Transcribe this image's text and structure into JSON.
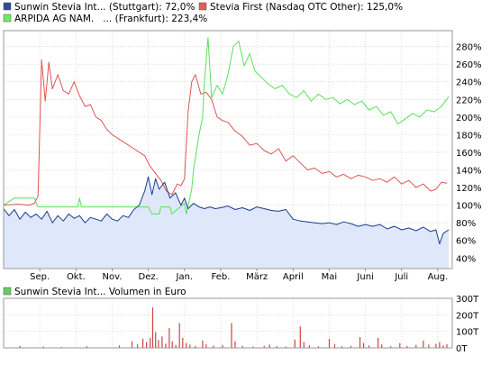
{
  "legend": [
    {
      "label": "Sunwin Stevia Int... (Stuttgart): 72,0%",
      "color": "#2e4a9e"
    },
    {
      "label": "Stevia First (Nasdaq OTC Other): 125,0%",
      "color": "#e06060"
    },
    {
      "label": "ARPIDA AG NAM.   ... (Frankfurt): 223,4%",
      "color": "#66ee66"
    }
  ],
  "volume_legend": {
    "label": "Sunwin Stevia Int... Volumen in Euro",
    "color": "#66cc66"
  },
  "colors": {
    "sunwin": "#1a3d8f",
    "sunwin_fill": "#dfe8fa",
    "stevia_first": "#e05555",
    "arpida": "#5ae05a",
    "volume": "#cc4444",
    "grid": "#c8c8c8"
  },
  "chart_data": [
    {
      "type": "line",
      "title": "",
      "x_tick_labels": [
        "Sep.",
        "Okt.",
        "Nov.",
        "Dez.",
        "Jan.",
        "Feb.",
        "März",
        "April",
        "Mai",
        "Juni",
        "Juli",
        "Aug."
      ],
      "x_tick_positions": [
        1.0,
        2.0,
        3.0,
        4.0,
        5.0,
        6.0,
        7.0,
        8.0,
        9.0,
        10.0,
        11.0,
        12.0
      ],
      "xlim": [
        0.0,
        12.4
      ],
      "y_tick_labels": [
        "40%",
        "60%",
        "80%",
        "100%",
        "120%",
        "140%",
        "160%",
        "180%",
        "200%",
        "220%",
        "240%",
        "260%",
        "280%"
      ],
      "ylim": [
        28,
        298
      ],
      "grid": true,
      "series": [
        {
          "name": "Sunwin Stevia Int... (Stuttgart): 72,0%",
          "color": "#1a3d8f",
          "fill": true,
          "x": [
            0.0,
            0.15,
            0.3,
            0.45,
            0.6,
            0.75,
            0.9,
            1.05,
            1.2,
            1.35,
            1.5,
            1.65,
            1.8,
            1.95,
            2.1,
            2.25,
            2.4,
            2.55,
            2.7,
            2.85,
            3.0,
            3.15,
            3.3,
            3.45,
            3.6,
            3.75,
            3.9,
            4.0,
            4.1,
            4.2,
            4.3,
            4.45,
            4.6,
            4.75,
            4.9,
            5.0,
            5.1,
            5.25,
            5.4,
            5.55,
            5.7,
            5.85,
            6.0,
            6.2,
            6.4,
            6.6,
            6.8,
            7.0,
            7.2,
            7.4,
            7.6,
            7.8,
            8.0,
            8.2,
            8.4,
            8.6,
            8.8,
            9.0,
            9.2,
            9.4,
            9.6,
            9.8,
            10.0,
            10.2,
            10.4,
            10.6,
            10.8,
            11.0,
            11.2,
            11.4,
            11.6,
            11.8,
            11.95,
            12.05,
            12.15,
            12.3
          ],
          "y": [
            96,
            88,
            95,
            84,
            92,
            86,
            90,
            84,
            93,
            80,
            88,
            82,
            90,
            85,
            88,
            80,
            86,
            84,
            82,
            90,
            84,
            82,
            88,
            86,
            95,
            100,
            116,
            132,
            112,
            130,
            118,
            126,
            108,
            114,
            100,
            108,
            96,
            102,
            98,
            96,
            98,
            96,
            97,
            99,
            95,
            97,
            94,
            98,
            96,
            94,
            93,
            95,
            84,
            82,
            81,
            80,
            79,
            80,
            78,
            81,
            79,
            76,
            78,
            76,
            78,
            73,
            76,
            72,
            74,
            71,
            75,
            70,
            72,
            56,
            68,
            72
          ]
        },
        {
          "name": "Stevia First (Nasdaq OTC Other): 125,0%",
          "color": "#e05555",
          "fill": false,
          "x": [
            0.0,
            0.4,
            0.7,
            0.85,
            0.95,
            1.05,
            1.15,
            1.25,
            1.35,
            1.5,
            1.65,
            1.8,
            1.95,
            2.1,
            2.25,
            2.4,
            2.55,
            2.7,
            2.85,
            3.0,
            3.15,
            3.3,
            3.45,
            3.6,
            3.75,
            3.9,
            4.05,
            4.2,
            4.35,
            4.5,
            4.65,
            4.8,
            4.9,
            5.0,
            5.1,
            5.2,
            5.3,
            5.45,
            5.6,
            5.75,
            5.9,
            6.05,
            6.2,
            6.4,
            6.6,
            6.8,
            7.0,
            7.2,
            7.4,
            7.6,
            7.8,
            8.0,
            8.2,
            8.4,
            8.6,
            8.8,
            9.0,
            9.2,
            9.4,
            9.6,
            9.8,
            10.0,
            10.2,
            10.4,
            10.6,
            10.8,
            11.0,
            11.2,
            11.4,
            11.6,
            11.8,
            11.95,
            12.1,
            12.25
          ],
          "y": [
            100,
            101,
            100,
            102,
            110,
            265,
            218,
            262,
            232,
            248,
            230,
            226,
            240,
            224,
            212,
            214,
            200,
            196,
            186,
            180,
            176,
            172,
            168,
            164,
            160,
            156,
            144,
            136,
            128,
            116,
            112,
            124,
            122,
            130,
            206,
            240,
            248,
            226,
            228,
            220,
            200,
            196,
            194,
            184,
            178,
            168,
            170,
            162,
            158,
            164,
            150,
            156,
            148,
            140,
            142,
            136,
            138,
            132,
            135,
            130,
            134,
            132,
            128,
            130,
            126,
            132,
            124,
            128,
            120,
            124,
            116,
            118,
            126,
            125
          ]
        },
        {
          "name": "ARPIDA AG NAM.   ... (Frankfurt): 223,4%",
          "color": "#5ae05a",
          "fill": false,
          "x": [
            0.0,
            0.3,
            0.6,
            0.85,
            0.95,
            1.2,
            1.5,
            1.8,
            2.05,
            2.1,
            2.15,
            2.5,
            2.9,
            3.2,
            3.5,
            3.8,
            4.0,
            4.1,
            4.3,
            4.35,
            4.6,
            4.65,
            5.0,
            5.05,
            5.2,
            5.25,
            5.4,
            5.5,
            5.55,
            5.65,
            5.75,
            5.9,
            6.05,
            6.2,
            6.35,
            6.5,
            6.65,
            6.8,
            6.95,
            7.1,
            7.3,
            7.5,
            7.7,
            7.9,
            8.1,
            8.3,
            8.5,
            8.7,
            8.9,
            9.1,
            9.3,
            9.5,
            9.7,
            9.9,
            10.1,
            10.3,
            10.5,
            10.7,
            10.9,
            11.1,
            11.3,
            11.5,
            11.7,
            11.9,
            12.1,
            12.3
          ],
          "y": [
            100,
            108,
            108,
            108,
            98,
            98,
            98,
            98,
            98,
            108,
            98,
            98,
            98,
            98,
            98,
            98,
            98,
            90,
            90,
            98,
            98,
            90,
            102,
            90,
            118,
            140,
            180,
            200,
            240,
            290,
            222,
            236,
            226,
            248,
            280,
            286,
            258,
            272,
            252,
            246,
            238,
            232,
            236,
            226,
            222,
            230,
            218,
            226,
            220,
            222,
            215,
            220,
            214,
            218,
            208,
            212,
            202,
            206,
            192,
            198,
            204,
            200,
            208,
            206,
            212,
            223
          ]
        }
      ]
    },
    {
      "type": "bar",
      "title": "Sunwin Stevia Int... Volumen in Euro",
      "y_tick_labels": [
        "0T",
        "100T",
        "200T",
        "300T"
      ],
      "ylim": [
        0,
        300
      ],
      "grid": true,
      "bar_color": "#cc4444",
      "bars": [
        {
          "x": 0.45,
          "value": 12
        },
        {
          "x": 1.1,
          "value": 8
        },
        {
          "x": 1.6,
          "value": 6
        },
        {
          "x": 2.3,
          "value": 10
        },
        {
          "x": 3.2,
          "value": 14
        },
        {
          "x": 3.55,
          "value": 40
        },
        {
          "x": 3.7,
          "value": 22
        },
        {
          "x": 3.85,
          "value": 55
        },
        {
          "x": 3.95,
          "value": 35
        },
        {
          "x": 4.05,
          "value": 60
        },
        {
          "x": 4.12,
          "value": 245
        },
        {
          "x": 4.2,
          "value": 95
        },
        {
          "x": 4.28,
          "value": 48
        },
        {
          "x": 4.38,
          "value": 70
        },
        {
          "x": 4.48,
          "value": 25
        },
        {
          "x": 4.58,
          "value": 120
        },
        {
          "x": 4.66,
          "value": 40
        },
        {
          "x": 4.76,
          "value": 18
        },
        {
          "x": 4.86,
          "value": 150
        },
        {
          "x": 4.95,
          "value": 60
        },
        {
          "x": 5.05,
          "value": 30
        },
        {
          "x": 5.15,
          "value": 20
        },
        {
          "x": 5.3,
          "value": 12
        },
        {
          "x": 5.5,
          "value": 45
        },
        {
          "x": 5.6,
          "value": 22
        },
        {
          "x": 5.8,
          "value": 14
        },
        {
          "x": 6.05,
          "value": 18
        },
        {
          "x": 6.3,
          "value": 150
        },
        {
          "x": 6.4,
          "value": 40
        },
        {
          "x": 6.6,
          "value": 12
        },
        {
          "x": 6.9,
          "value": 8
        },
        {
          "x": 7.2,
          "value": 12
        },
        {
          "x": 7.35,
          "value": 20
        },
        {
          "x": 7.55,
          "value": 10
        },
        {
          "x": 7.8,
          "value": 8
        },
        {
          "x": 8.05,
          "value": 50
        },
        {
          "x": 8.2,
          "value": 130
        },
        {
          "x": 8.3,
          "value": 35
        },
        {
          "x": 8.45,
          "value": 15
        },
        {
          "x": 8.7,
          "value": 10
        },
        {
          "x": 9.0,
          "value": 55
        },
        {
          "x": 9.15,
          "value": 22
        },
        {
          "x": 9.35,
          "value": 10
        },
        {
          "x": 9.6,
          "value": 12
        },
        {
          "x": 9.85,
          "value": 65
        },
        {
          "x": 9.95,
          "value": 30
        },
        {
          "x": 10.1,
          "value": 14
        },
        {
          "x": 10.35,
          "value": 60
        },
        {
          "x": 10.45,
          "value": 20
        },
        {
          "x": 10.7,
          "value": 10
        },
        {
          "x": 10.95,
          "value": 28
        },
        {
          "x": 11.15,
          "value": 12
        },
        {
          "x": 11.4,
          "value": 18
        },
        {
          "x": 11.6,
          "value": 45
        },
        {
          "x": 11.75,
          "value": 20
        },
        {
          "x": 11.95,
          "value": 25
        },
        {
          "x": 12.05,
          "value": 35
        },
        {
          "x": 12.15,
          "value": 15
        },
        {
          "x": 12.25,
          "value": 22
        }
      ]
    }
  ]
}
